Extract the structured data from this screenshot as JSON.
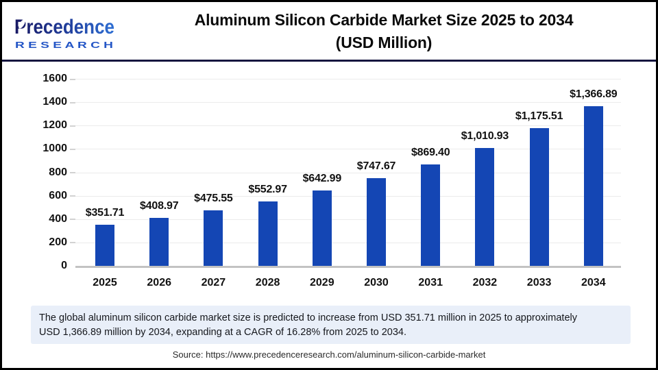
{
  "brand": {
    "name": "Precedence",
    "subname": "R E S E A R C H",
    "accent_dark": "#191963",
    "accent_blue": "#2e6fd4"
  },
  "header": {
    "title_line1": "Aluminum Silicon Carbide Market Size 2025 to 2034",
    "title_line2": "(USD Million)"
  },
  "chart_data": {
    "type": "bar",
    "title": "Aluminum Silicon Carbide Market Size 2025 to 2034 (USD Million)",
    "categories": [
      "2025",
      "2026",
      "2027",
      "2028",
      "2029",
      "2030",
      "2031",
      "2032",
      "2033",
      "2034"
    ],
    "values": [
      351.71,
      408.97,
      475.55,
      552.97,
      642.99,
      747.67,
      869.4,
      1010.93,
      1175.51,
      1366.89
    ],
    "value_labels": [
      "$351.71",
      "$408.97",
      "$475.55",
      "$552.97",
      "$642.99",
      "$747.67",
      "$869.40",
      "$1,010.93",
      "$1,175.51",
      "$1,366.89"
    ],
    "xlabel": "",
    "ylabel": "",
    "ylim": [
      0,
      1600
    ],
    "yticks": [
      0,
      200,
      400,
      600,
      800,
      1000,
      1200,
      1400,
      1600
    ],
    "grid": true,
    "legend": "none",
    "bar_color": "#1446b4",
    "axis_line_color": "#c2c2c2",
    "gridline_color": "#ebebeb"
  },
  "summary": {
    "line1": "The global aluminum silicon carbide market size is predicted to increase from USD 351.71 million in 2025 to approximately",
    "line2": "USD 1,366.89 million by 2034, expanding at a CAGR of 16.28% from 2025 to 2034."
  },
  "source": "Source: https://www.precedenceresearch.com/aluminum-silicon-carbide-market"
}
